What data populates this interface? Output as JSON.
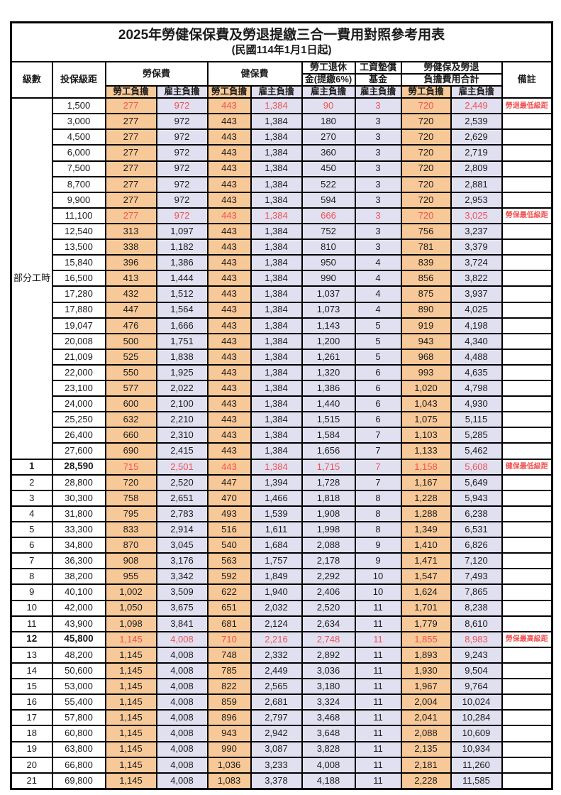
{
  "title": "2025年勞健保保費及勞退提繳三合一費用對照參考用表",
  "subtitle": "(民國114年1月1日起)",
  "colors": {
    "employee_bg": "#F8C998",
    "employer_bg": "#E0E0F1",
    "highlight_red": "#F05252",
    "border": "#000000"
  },
  "header": {
    "level": "級數",
    "bracket": "投保級距",
    "labor_insurance": "勞保費",
    "health_insurance": "健保費",
    "pension_top": "勞工退休",
    "pension_bottom": "金(提繳6%)",
    "wage_fund_top": "工資墊償",
    "wage_fund_bottom": "基金",
    "total_top": "勞健保及勞退",
    "total_bottom": "負擔費用合計",
    "remark": "備註",
    "employee_burden": "勞工負擔",
    "employer_burden": "雇主負擔"
  },
  "part_time": {
    "label": "部分工時",
    "rowspan": 23
  },
  "rows": [
    {
      "level": "",
      "bracket": "1,500",
      "labor_emp": "277",
      "labor_er": "972",
      "health_emp": "443",
      "health_er": "1,384",
      "pension_er": "90",
      "fund_er": "3",
      "total_emp": "720",
      "total_er": "2,449",
      "remark": "勞退最低級距",
      "red": true,
      "bold": false
    },
    {
      "level": "",
      "bracket": "3,000",
      "labor_emp": "277",
      "labor_er": "972",
      "health_emp": "443",
      "health_er": "1,384",
      "pension_er": "180",
      "fund_er": "3",
      "total_emp": "720",
      "total_er": "2,539",
      "remark": "",
      "red": false,
      "bold": false
    },
    {
      "level": "",
      "bracket": "4,500",
      "labor_emp": "277",
      "labor_er": "972",
      "health_emp": "443",
      "health_er": "1,384",
      "pension_er": "270",
      "fund_er": "3",
      "total_emp": "720",
      "total_er": "2,629",
      "remark": "",
      "red": false,
      "bold": false
    },
    {
      "level": "",
      "bracket": "6,000",
      "labor_emp": "277",
      "labor_er": "972",
      "health_emp": "443",
      "health_er": "1,384",
      "pension_er": "360",
      "fund_er": "3",
      "total_emp": "720",
      "total_er": "2,719",
      "remark": "",
      "red": false,
      "bold": false
    },
    {
      "level": "",
      "bracket": "7,500",
      "labor_emp": "277",
      "labor_er": "972",
      "health_emp": "443",
      "health_er": "1,384",
      "pension_er": "450",
      "fund_er": "3",
      "total_emp": "720",
      "total_er": "2,809",
      "remark": "",
      "red": false,
      "bold": false
    },
    {
      "level": "",
      "bracket": "8,700",
      "labor_emp": "277",
      "labor_er": "972",
      "health_emp": "443",
      "health_er": "1,384",
      "pension_er": "522",
      "fund_er": "3",
      "total_emp": "720",
      "total_er": "2,881",
      "remark": "",
      "red": false,
      "bold": false
    },
    {
      "level": "",
      "bracket": "9,900",
      "labor_emp": "277",
      "labor_er": "972",
      "health_emp": "443",
      "health_er": "1,384",
      "pension_er": "594",
      "fund_er": "3",
      "total_emp": "720",
      "total_er": "2,953",
      "remark": "",
      "red": false,
      "bold": false
    },
    {
      "level": "",
      "bracket": "11,100",
      "labor_emp": "277",
      "labor_er": "972",
      "health_emp": "443",
      "health_er": "1,384",
      "pension_er": "666",
      "fund_er": "3",
      "total_emp": "720",
      "total_er": "3,025",
      "remark": "勞保最低級距",
      "red": true,
      "bold": false
    },
    {
      "level": "",
      "bracket": "12,540",
      "labor_emp": "313",
      "labor_er": "1,097",
      "health_emp": "443",
      "health_er": "1,384",
      "pension_er": "752",
      "fund_er": "3",
      "total_emp": "756",
      "total_er": "3,237",
      "remark": "",
      "red": false,
      "bold": false
    },
    {
      "level": "",
      "bracket": "13,500",
      "labor_emp": "338",
      "labor_er": "1,182",
      "health_emp": "443",
      "health_er": "1,384",
      "pension_er": "810",
      "fund_er": "3",
      "total_emp": "781",
      "total_er": "3,379",
      "remark": "",
      "red": false,
      "bold": false
    },
    {
      "level": "",
      "bracket": "15,840",
      "labor_emp": "396",
      "labor_er": "1,386",
      "health_emp": "443",
      "health_er": "1,384",
      "pension_er": "950",
      "fund_er": "4",
      "total_emp": "839",
      "total_er": "3,724",
      "remark": "",
      "red": false,
      "bold": false
    },
    {
      "level": "",
      "bracket": "16,500",
      "labor_emp": "413",
      "labor_er": "1,444",
      "health_emp": "443",
      "health_er": "1,384",
      "pension_er": "990",
      "fund_er": "4",
      "total_emp": "856",
      "total_er": "3,822",
      "remark": "",
      "red": false,
      "bold": false
    },
    {
      "level": "",
      "bracket": "17,280",
      "labor_emp": "432",
      "labor_er": "1,512",
      "health_emp": "443",
      "health_er": "1,384",
      "pension_er": "1,037",
      "fund_er": "4",
      "total_emp": "875",
      "total_er": "3,937",
      "remark": "",
      "red": false,
      "bold": false
    },
    {
      "level": "",
      "bracket": "17,880",
      "labor_emp": "447",
      "labor_er": "1,564",
      "health_emp": "443",
      "health_er": "1,384",
      "pension_er": "1,073",
      "fund_er": "4",
      "total_emp": "890",
      "total_er": "4,025",
      "remark": "",
      "red": false,
      "bold": false
    },
    {
      "level": "",
      "bracket": "19,047",
      "labor_emp": "476",
      "labor_er": "1,666",
      "health_emp": "443",
      "health_er": "1,384",
      "pension_er": "1,143",
      "fund_er": "5",
      "total_emp": "919",
      "total_er": "4,198",
      "remark": "",
      "red": false,
      "bold": false
    },
    {
      "level": "",
      "bracket": "20,008",
      "labor_emp": "500",
      "labor_er": "1,751",
      "health_emp": "443",
      "health_er": "1,384",
      "pension_er": "1,200",
      "fund_er": "5",
      "total_emp": "943",
      "total_er": "4,340",
      "remark": "",
      "red": false,
      "bold": false
    },
    {
      "level": "",
      "bracket": "21,009",
      "labor_emp": "525",
      "labor_er": "1,838",
      "health_emp": "443",
      "health_er": "1,384",
      "pension_er": "1,261",
      "fund_er": "5",
      "total_emp": "968",
      "total_er": "4,488",
      "remark": "",
      "red": false,
      "bold": false
    },
    {
      "level": "",
      "bracket": "22,000",
      "labor_emp": "550",
      "labor_er": "1,925",
      "health_emp": "443",
      "health_er": "1,384",
      "pension_er": "1,320",
      "fund_er": "6",
      "total_emp": "993",
      "total_er": "4,635",
      "remark": "",
      "red": false,
      "bold": false
    },
    {
      "level": "",
      "bracket": "23,100",
      "labor_emp": "577",
      "labor_er": "2,022",
      "health_emp": "443",
      "health_er": "1,384",
      "pension_er": "1,386",
      "fund_er": "6",
      "total_emp": "1,020",
      "total_er": "4,798",
      "remark": "",
      "red": false,
      "bold": false
    },
    {
      "level": "",
      "bracket": "24,000",
      "labor_emp": "600",
      "labor_er": "2,100",
      "health_emp": "443",
      "health_er": "1,384",
      "pension_er": "1,440",
      "fund_er": "6",
      "total_emp": "1,043",
      "total_er": "4,930",
      "remark": "",
      "red": false,
      "bold": false
    },
    {
      "level": "",
      "bracket": "25,250",
      "labor_emp": "632",
      "labor_er": "2,210",
      "health_emp": "443",
      "health_er": "1,384",
      "pension_er": "1,515",
      "fund_er": "6",
      "total_emp": "1,075",
      "total_er": "5,115",
      "remark": "",
      "red": false,
      "bold": false
    },
    {
      "level": "",
      "bracket": "26,400",
      "labor_emp": "660",
      "labor_er": "2,310",
      "health_emp": "443",
      "health_er": "1,384",
      "pension_er": "1,584",
      "fund_er": "7",
      "total_emp": "1,103",
      "total_er": "5,285",
      "remark": "",
      "red": false,
      "bold": false
    },
    {
      "level": "",
      "bracket": "27,600",
      "labor_emp": "690",
      "labor_er": "2,415",
      "health_emp": "443",
      "health_er": "1,384",
      "pension_er": "1,656",
      "fund_er": "7",
      "total_emp": "1,133",
      "total_er": "5,462",
      "remark": "",
      "red": false,
      "bold": false
    },
    {
      "level": "1",
      "bracket": "28,590",
      "labor_emp": "715",
      "labor_er": "2,501",
      "health_emp": "443",
      "health_er": "1,384",
      "pension_er": "1,715",
      "fund_er": "7",
      "total_emp": "1,158",
      "total_er": "5,608",
      "remark": "健保最低級距",
      "red": true,
      "bold": true
    },
    {
      "level": "2",
      "bracket": "28,800",
      "labor_emp": "720",
      "labor_er": "2,520",
      "health_emp": "447",
      "health_er": "1,394",
      "pension_er": "1,728",
      "fund_er": "7",
      "total_emp": "1,167",
      "total_er": "5,649",
      "remark": "",
      "red": false,
      "bold": false
    },
    {
      "level": "3",
      "bracket": "30,300",
      "labor_emp": "758",
      "labor_er": "2,651",
      "health_emp": "470",
      "health_er": "1,466",
      "pension_er": "1,818",
      "fund_er": "8",
      "total_emp": "1,228",
      "total_er": "5,943",
      "remark": "",
      "red": false,
      "bold": false
    },
    {
      "level": "4",
      "bracket": "31,800",
      "labor_emp": "795",
      "labor_er": "2,783",
      "health_emp": "493",
      "health_er": "1,539",
      "pension_er": "1,908",
      "fund_er": "8",
      "total_emp": "1,288",
      "total_er": "6,238",
      "remark": "",
      "red": false,
      "bold": false
    },
    {
      "level": "5",
      "bracket": "33,300",
      "labor_emp": "833",
      "labor_er": "2,914",
      "health_emp": "516",
      "health_er": "1,611",
      "pension_er": "1,998",
      "fund_er": "8",
      "total_emp": "1,349",
      "total_er": "6,531",
      "remark": "",
      "red": false,
      "bold": false
    },
    {
      "level": "6",
      "bracket": "34,800",
      "labor_emp": "870",
      "labor_er": "3,045",
      "health_emp": "540",
      "health_er": "1,684",
      "pension_er": "2,088",
      "fund_er": "9",
      "total_emp": "1,410",
      "total_er": "6,826",
      "remark": "",
      "red": false,
      "bold": false
    },
    {
      "level": "7",
      "bracket": "36,300",
      "labor_emp": "908",
      "labor_er": "3,176",
      "health_emp": "563",
      "health_er": "1,757",
      "pension_er": "2,178",
      "fund_er": "9",
      "total_emp": "1,471",
      "total_er": "7,120",
      "remark": "",
      "red": false,
      "bold": false
    },
    {
      "level": "8",
      "bracket": "38,200",
      "labor_emp": "955",
      "labor_er": "3,342",
      "health_emp": "592",
      "health_er": "1,849",
      "pension_er": "2,292",
      "fund_er": "10",
      "total_emp": "1,547",
      "total_er": "7,493",
      "remark": "",
      "red": false,
      "bold": false
    },
    {
      "level": "9",
      "bracket": "40,100",
      "labor_emp": "1,002",
      "labor_er": "3,509",
      "health_emp": "622",
      "health_er": "1,940",
      "pension_er": "2,406",
      "fund_er": "10",
      "total_emp": "1,624",
      "total_er": "7,865",
      "remark": "",
      "red": false,
      "bold": false
    },
    {
      "level": "10",
      "bracket": "42,000",
      "labor_emp": "1,050",
      "labor_er": "3,675",
      "health_emp": "651",
      "health_er": "2,032",
      "pension_er": "2,520",
      "fund_er": "11",
      "total_emp": "1,701",
      "total_er": "8,238",
      "remark": "",
      "red": false,
      "bold": false
    },
    {
      "level": "11",
      "bracket": "43,900",
      "labor_emp": "1,098",
      "labor_er": "3,841",
      "health_emp": "681",
      "health_er": "2,124",
      "pension_er": "2,634",
      "fund_er": "11",
      "total_emp": "1,779",
      "total_er": "8,610",
      "remark": "",
      "red": false,
      "bold": false
    },
    {
      "level": "12",
      "bracket": "45,800",
      "labor_emp": "1,145",
      "labor_er": "4,008",
      "health_emp": "710",
      "health_er": "2,216",
      "pension_er": "2,748",
      "fund_er": "11",
      "total_emp": "1,855",
      "total_er": "8,983",
      "remark": "勞保最高級距",
      "red": true,
      "bold": true
    },
    {
      "level": "13",
      "bracket": "48,200",
      "labor_emp": "1,145",
      "labor_er": "4,008",
      "health_emp": "748",
      "health_er": "2,332",
      "pension_er": "2,892",
      "fund_er": "11",
      "total_emp": "1,893",
      "total_er": "9,243",
      "remark": "",
      "red": false,
      "bold": false
    },
    {
      "level": "14",
      "bracket": "50,600",
      "labor_emp": "1,145",
      "labor_er": "4,008",
      "health_emp": "785",
      "health_er": "2,449",
      "pension_er": "3,036",
      "fund_er": "11",
      "total_emp": "1,930",
      "total_er": "9,504",
      "remark": "",
      "red": false,
      "bold": false
    },
    {
      "level": "15",
      "bracket": "53,000",
      "labor_emp": "1,145",
      "labor_er": "4,008",
      "health_emp": "822",
      "health_er": "2,565",
      "pension_er": "3,180",
      "fund_er": "11",
      "total_emp": "1,967",
      "total_er": "9,764",
      "remark": "",
      "red": false,
      "bold": false
    },
    {
      "level": "16",
      "bracket": "55,400",
      "labor_emp": "1,145",
      "labor_er": "4,008",
      "health_emp": "859",
      "health_er": "2,681",
      "pension_er": "3,324",
      "fund_er": "11",
      "total_emp": "2,004",
      "total_er": "10,024",
      "remark": "",
      "red": false,
      "bold": false
    },
    {
      "level": "17",
      "bracket": "57,800",
      "labor_emp": "1,145",
      "labor_er": "4,008",
      "health_emp": "896",
      "health_er": "2,797",
      "pension_er": "3,468",
      "fund_er": "11",
      "total_emp": "2,041",
      "total_er": "10,284",
      "remark": "",
      "red": false,
      "bold": false
    },
    {
      "level": "18",
      "bracket": "60,800",
      "labor_emp": "1,145",
      "labor_er": "4,008",
      "health_emp": "943",
      "health_er": "2,942",
      "pension_er": "3,648",
      "fund_er": "11",
      "total_emp": "2,088",
      "total_er": "10,609",
      "remark": "",
      "red": false,
      "bold": false
    },
    {
      "level": "19",
      "bracket": "63,800",
      "labor_emp": "1,145",
      "labor_er": "4,008",
      "health_emp": "990",
      "health_er": "3,087",
      "pension_er": "3,828",
      "fund_er": "11",
      "total_emp": "2,135",
      "total_er": "10,934",
      "remark": "",
      "red": false,
      "bold": false
    },
    {
      "level": "20",
      "bracket": "66,800",
      "labor_emp": "1,145",
      "labor_er": "4,008",
      "health_emp": "1,036",
      "health_er": "3,233",
      "pension_er": "4,008",
      "fund_er": "11",
      "total_emp": "2,181",
      "total_er": "11,260",
      "remark": "",
      "red": false,
      "bold": false
    },
    {
      "level": "21",
      "bracket": "69,800",
      "labor_emp": "1,145",
      "labor_er": "4,008",
      "health_emp": "1,083",
      "health_er": "3,378",
      "pension_er": "4,188",
      "fund_er": "11",
      "total_emp": "2,228",
      "total_er": "11,585",
      "remark": "",
      "red": false,
      "bold": false
    }
  ]
}
